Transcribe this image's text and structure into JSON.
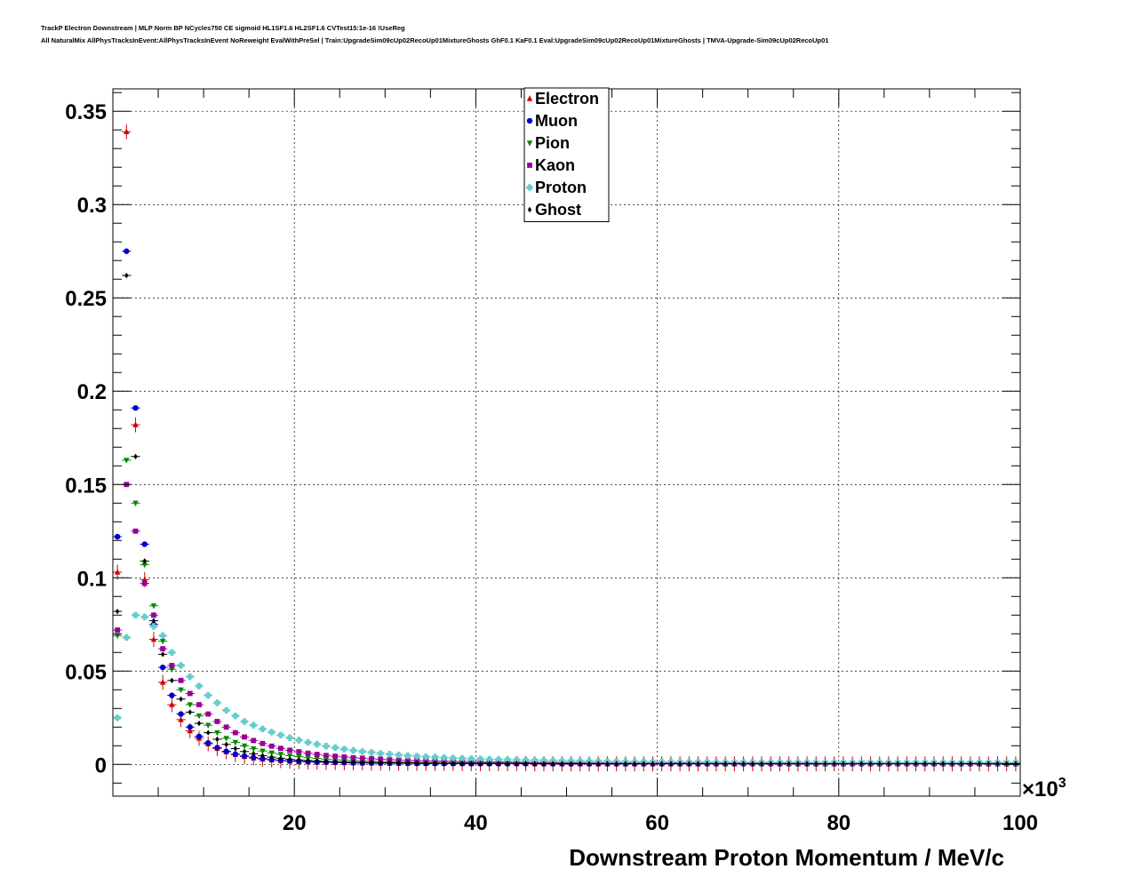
{
  "header": {
    "title_line1": "TrackP Electron Downstream | MLP Norm BP NCycles750 CE sigmoid HL1SF1.6 HL2SF1.6 CVTest15:1e-16 !UseReg",
    "title_line2": "All NaturalMix AllPhysTracksInEvent:AllPhysTracksInEvent NoReweight EvalWithPreSel | Train:UpgradeSim09cUp02RecoUp01MixtureGhosts GhF0.1 KaF0.1 Eval:UpgradeSim09cUp02RecoUp01MixtureGhosts | TMVA-Upgrade-Sim09cUp02RecoUp01"
  },
  "chart_data": {
    "type": "scatter",
    "title": "",
    "xlabel": "Downstream Proton Momentum / MeV/c",
    "ylabel": "",
    "x_multiplier_label": "×10",
    "x_multiplier_exp": "3",
    "xlim": [
      0,
      100
    ],
    "ylim": [
      -0.017,
      0.362
    ],
    "x_ticks": [
      20,
      40,
      60,
      80,
      100
    ],
    "x_tick_labels": [
      "20",
      "40",
      "60",
      "80",
      "100"
    ],
    "y_ticks": [
      0,
      0.05,
      0.1,
      0.15,
      0.2,
      0.25,
      0.3,
      0.35
    ],
    "y_tick_labels": [
      "0",
      "0.05",
      "0.1",
      "0.15",
      "0.2",
      "0.25",
      "0.3",
      "0.35"
    ],
    "grid": true,
    "legend_position": "top-center",
    "x": [
      0.5,
      1.5,
      2.5,
      3.5,
      4.5,
      5.5,
      6.5,
      7.5,
      8.5,
      9.5,
      10.5,
      11.5,
      12.5,
      13.5,
      14.5,
      15.5,
      16.5,
      17.5,
      18.5,
      19.5,
      20.5,
      21.5,
      22.5,
      23.5,
      24.5,
      25.5,
      26.5,
      27.5,
      28.5,
      29.5,
      30.5,
      31.5,
      32.5,
      33.5,
      34.5,
      35.5,
      36.5,
      37.5,
      38.5,
      39.5,
      40.5,
      41.5,
      42.5,
      43.5,
      44.5,
      45.5,
      46.5,
      47.5,
      48.5,
      49.5,
      50.5,
      51.5,
      52.5,
      53.5,
      54.5,
      55.5,
      56.5,
      57.5,
      58.5,
      59.5,
      60.5,
      61.5,
      62.5,
      63.5,
      64.5,
      65.5,
      66.5,
      67.5,
      68.5,
      69.5,
      70.5,
      71.5,
      72.5,
      73.5,
      74.5,
      75.5,
      76.5,
      77.5,
      78.5,
      79.5,
      80.5,
      81.5,
      82.5,
      83.5,
      84.5,
      85.5,
      86.5,
      87.5,
      88.5,
      89.5,
      90.5,
      91.5,
      92.5,
      93.5,
      94.5,
      95.5,
      96.5,
      97.5,
      98.5,
      99.5
    ],
    "series": [
      {
        "name": "Electron",
        "color": "#cc0000",
        "marker": "triangle-up",
        "y_error": 0.004,
        "values": [
          0.103,
          0.339,
          0.182,
          0.099,
          0.067,
          0.044,
          0.032,
          0.024,
          0.018,
          0.014,
          0.011,
          0.0085,
          0.0067,
          0.0053,
          0.0042,
          0.0034,
          0.0028,
          0.0024,
          0.002,
          0.0017,
          0.0015,
          0.0013,
          0.0012,
          0.0011,
          0.001,
          0.0009,
          0.0008,
          0.0008,
          0.0007,
          0.0007,
          0.0006,
          0.0006,
          0.0006,
          0.0005,
          0.0005,
          0.0005,
          0.0005,
          0.0005,
          0.0004,
          0.0004,
          0.0004,
          0.0004,
          0.0004,
          0.0004,
          0.0004,
          0.0004,
          0.0003,
          0.0003,
          0.0003,
          0.0003,
          0.0003,
          0.0003,
          0.0003,
          0.0003,
          0.0003,
          0.0003,
          0.0003,
          0.0003,
          0.0003,
          0.0003,
          0.0003,
          0.0003,
          0.0003,
          0.0003,
          0.0003,
          0.0003,
          0.0003,
          0.0003,
          0.0003,
          0.0003,
          0.0003,
          0.0003,
          0.0003,
          0.0003,
          0.0003,
          0.0003,
          0.0003,
          0.0003,
          0.0003,
          0.0003,
          0.0003,
          0.0003,
          0.0003,
          0.0003,
          0.0003,
          0.0003,
          0.0003,
          0.0003,
          0.0003,
          0.0003,
          0.0003,
          0.0003,
          0.0003,
          0.0003,
          0.0003,
          0.0003,
          0.0003,
          0.0003,
          0.0003,
          0.0003
        ]
      },
      {
        "name": "Muon",
        "color": "#0000cc",
        "marker": "circle",
        "y_error": 0.001,
        "values": [
          0.122,
          0.275,
          0.191,
          0.118,
          0.075,
          0.052,
          0.037,
          0.027,
          0.02,
          0.015,
          0.0115,
          0.009,
          0.007,
          0.0055,
          0.0045,
          0.0037,
          0.0031,
          0.0026,
          0.0022,
          0.0019,
          0.0017,
          0.0015,
          0.0013,
          0.0012,
          0.0011,
          0.001,
          0.0009,
          0.0008,
          0.0008,
          0.0007,
          0.0007,
          0.0006,
          0.0006,
          0.0006,
          0.0005,
          0.0005,
          0.0005,
          0.0005,
          0.0005,
          0.0004,
          0.0004,
          0.0004,
          0.0004,
          0.0004,
          0.0004,
          0.0004,
          0.0004,
          0.0003,
          0.0003,
          0.0003,
          0.0003,
          0.0003,
          0.0003,
          0.0003,
          0.0003,
          0.0003,
          0.0003,
          0.0003,
          0.0003,
          0.0003,
          0.0003,
          0.0003,
          0.0003,
          0.0003,
          0.0003,
          0.0003,
          0.0003,
          0.0003,
          0.0003,
          0.0003,
          0.0003,
          0.0003,
          0.0003,
          0.0003,
          0.0003,
          0.0003,
          0.0003,
          0.0003,
          0.0003,
          0.0003,
          0.0003,
          0.0003,
          0.0003,
          0.0003,
          0.0003,
          0.0003,
          0.0003,
          0.0003,
          0.0003,
          0.0003,
          0.0003,
          0.0003,
          0.0003,
          0.0003,
          0.0003,
          0.0003,
          0.0003,
          0.0003,
          0.0003,
          0.0003
        ]
      },
      {
        "name": "Pion",
        "color": "#008800",
        "marker": "triangle-down",
        "y_error": 0.001,
        "values": [
          0.069,
          0.163,
          0.14,
          0.107,
          0.085,
          0.066,
          0.051,
          0.04,
          0.032,
          0.026,
          0.021,
          0.017,
          0.014,
          0.0118,
          0.0099,
          0.0084,
          0.0072,
          0.0062,
          0.0054,
          0.0047,
          0.0041,
          0.0036,
          0.0032,
          0.0028,
          0.0025,
          0.0023,
          0.0021,
          0.0019,
          0.0017,
          0.0016,
          0.0015,
          0.0014,
          0.0013,
          0.0012,
          0.0011,
          0.0011,
          0.001,
          0.001,
          0.0009,
          0.0009,
          0.0008,
          0.0008,
          0.0008,
          0.0007,
          0.0007,
          0.0007,
          0.0007,
          0.0006,
          0.0006,
          0.0006,
          0.0006,
          0.0006,
          0.0005,
          0.0005,
          0.0005,
          0.0005,
          0.0005,
          0.0005,
          0.0005,
          0.0005,
          0.0004,
          0.0004,
          0.0004,
          0.0004,
          0.0004,
          0.0004,
          0.0004,
          0.0004,
          0.0004,
          0.0004,
          0.0004,
          0.0004,
          0.0004,
          0.0004,
          0.0004,
          0.0004,
          0.0004,
          0.0004,
          0.0004,
          0.0004,
          0.0004,
          0.0004,
          0.0004,
          0.0004,
          0.0004,
          0.0004,
          0.0004,
          0.0004,
          0.0004,
          0.0004,
          0.0004,
          0.0004,
          0.0004,
          0.0004,
          0.0004,
          0.0004,
          0.0004,
          0.0004,
          0.0004,
          0.0004
        ]
      },
      {
        "name": "Kaon",
        "color": "#990099",
        "marker": "square",
        "y_error": 0.001,
        "values": [
          0.072,
          0.15,
          0.125,
          0.097,
          0.08,
          0.062,
          0.053,
          0.045,
          0.038,
          0.032,
          0.027,
          0.023,
          0.02,
          0.017,
          0.0147,
          0.0128,
          0.0112,
          0.0098,
          0.0086,
          0.0076,
          0.0068,
          0.006,
          0.0054,
          0.0048,
          0.0044,
          0.004,
          0.0036,
          0.0033,
          0.003,
          0.0028,
          0.0026,
          0.0024,
          0.0022,
          0.0021,
          0.002,
          0.0019,
          0.0018,
          0.0017,
          0.0016,
          0.0015,
          0.0014,
          0.0014,
          0.0013,
          0.0013,
          0.0012,
          0.0012,
          0.0011,
          0.0011,
          0.0011,
          0.001,
          0.001,
          0.001,
          0.001,
          0.0009,
          0.0009,
          0.0009,
          0.0009,
          0.0009,
          0.0008,
          0.0008,
          0.0008,
          0.0008,
          0.0008,
          0.0008,
          0.0008,
          0.0007,
          0.0007,
          0.0007,
          0.0007,
          0.0007,
          0.0007,
          0.0007,
          0.0007,
          0.0007,
          0.0007,
          0.0007,
          0.0007,
          0.0006,
          0.0006,
          0.0006,
          0.0006,
          0.0006,
          0.0006,
          0.0006,
          0.0006,
          0.0006,
          0.0006,
          0.0006,
          0.0006,
          0.0006,
          0.0006,
          0.0006,
          0.0006,
          0.0006,
          0.0006,
          0.0006,
          0.0006,
          0.0006,
          0.0006,
          0.0006
        ]
      },
      {
        "name": "Proton",
        "color": "#66cccc",
        "marker": "cross",
        "y_error": 0.001,
        "values": [
          0.025,
          0.068,
          0.08,
          0.079,
          0.074,
          0.069,
          0.06,
          0.053,
          0.047,
          0.042,
          0.037,
          0.033,
          0.029,
          0.026,
          0.023,
          0.021,
          0.019,
          0.0173,
          0.0157,
          0.0143,
          0.013,
          0.0118,
          0.0108,
          0.0098,
          0.009,
          0.0082,
          0.0075,
          0.0069,
          0.0064,
          0.0059,
          0.0055,
          0.0051,
          0.0047,
          0.0044,
          0.0041,
          0.0039,
          0.0036,
          0.0034,
          0.0032,
          0.003,
          0.0029,
          0.0027,
          0.0026,
          0.0025,
          0.0024,
          0.0023,
          0.0022,
          0.0021,
          0.002,
          0.0019,
          0.0019,
          0.0018,
          0.0017,
          0.0017,
          0.0016,
          0.0016,
          0.0015,
          0.0015,
          0.0015,
          0.0014,
          0.0014,
          0.0014,
          0.0013,
          0.0013,
          0.0013,
          0.0013,
          0.0012,
          0.0012,
          0.0012,
          0.0012,
          0.0012,
          0.0011,
          0.0011,
          0.0011,
          0.0011,
          0.0011,
          0.0011,
          0.0011,
          0.001,
          0.001,
          0.001,
          0.001,
          0.001,
          0.001,
          0.001,
          0.001,
          0.001,
          0.001,
          0.001,
          0.001,
          0.001,
          0.001,
          0.001,
          0.001,
          0.001,
          0.001,
          0.001,
          0.001,
          0.001,
          0.001
        ]
      },
      {
        "name": "Ghost",
        "color": "#000000",
        "marker": "diamond",
        "y_error": 0.001,
        "values": [
          0.082,
          0.262,
          0.165,
          0.109,
          0.077,
          0.059,
          0.045,
          0.035,
          0.028,
          0.022,
          0.017,
          0.0135,
          0.0107,
          0.0085,
          0.0069,
          0.0057,
          0.0047,
          0.0039,
          0.0033,
          0.0028,
          0.0024,
          0.0021,
          0.0018,
          0.0016,
          0.0014,
          0.0013,
          0.0012,
          0.0011,
          0.001,
          0.0009,
          0.0009,
          0.0008,
          0.0008,
          0.0007,
          0.0007,
          0.0007,
          0.0006,
          0.0006,
          0.0006,
          0.0006,
          0.0005,
          0.0005,
          0.0005,
          0.0005,
          0.0005,
          0.0005,
          0.0004,
          0.0004,
          0.0004,
          0.0004,
          0.0004,
          0.0004,
          0.0004,
          0.0004,
          0.0004,
          0.0004,
          0.0004,
          0.0004,
          0.0004,
          0.0004,
          0.0004,
          0.0004,
          0.0004,
          0.0004,
          0.0004,
          0.0004,
          0.0004,
          0.0004,
          0.0004,
          0.0004,
          0.0004,
          0.0004,
          0.0004,
          0.0004,
          0.0004,
          0.0004,
          0.0004,
          0.0004,
          0.0004,
          0.0004,
          0.0004,
          0.0004,
          0.0004,
          0.0004,
          0.0004,
          0.0004,
          0.0004,
          0.0004,
          0.0004,
          0.0004,
          0.0004,
          0.0004,
          0.0004,
          0.0004,
          0.0004,
          0.0004,
          0.0004,
          0.0004,
          0.0004,
          0.0004
        ]
      }
    ]
  }
}
